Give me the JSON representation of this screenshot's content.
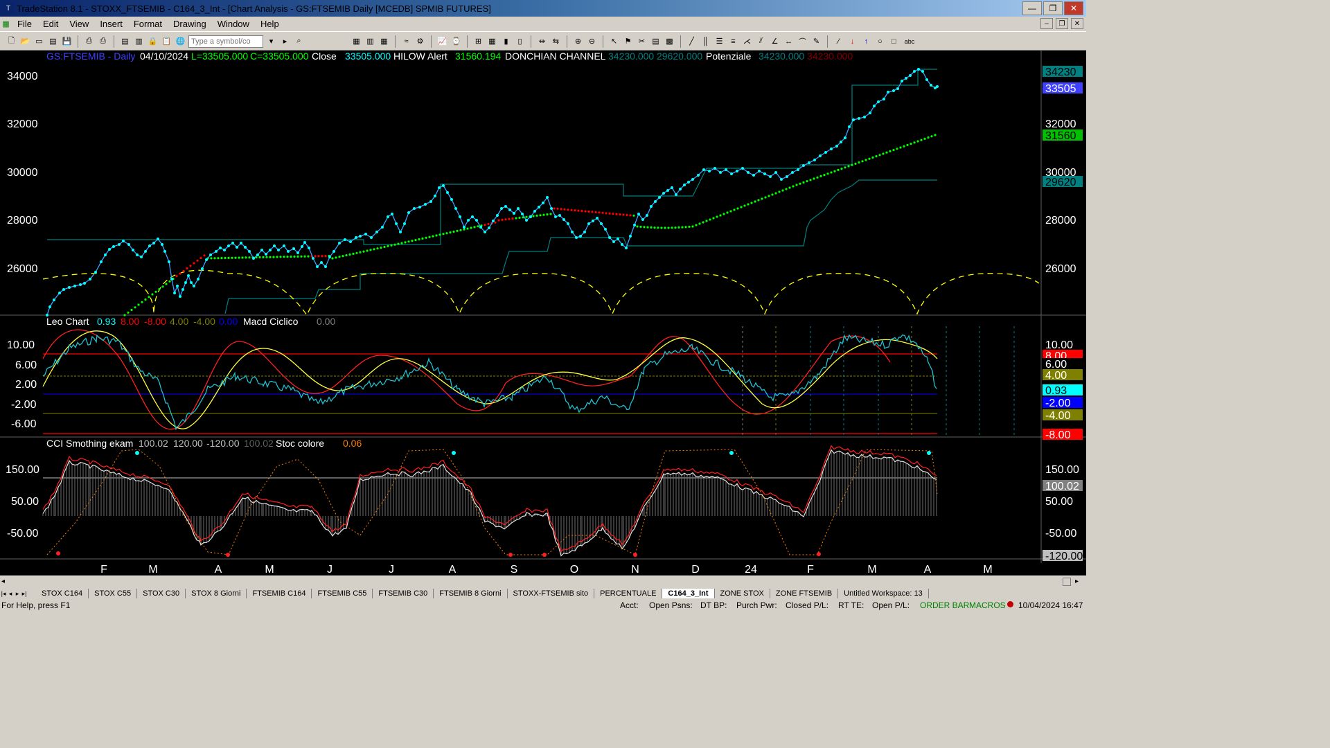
{
  "window": {
    "title": "TradeStation 8.1 - STOXX_FTSEMIB - C164_3_Int - [Chart Analysis - GS:FTSEMIB  Daily  [MCEDB] SPMIB FUTURES]",
    "minimize": "—",
    "maximize": "❐",
    "close": "✕"
  },
  "menu": [
    "File",
    "Edit",
    "View",
    "Insert",
    "Format",
    "Drawing",
    "Window",
    "Help"
  ],
  "toolbar": {
    "symbol_placeholder": "Type a symbol/co",
    "text_tool": "abc"
  },
  "chart": {
    "header": {
      "symbol": "GS:FTSEMIB - Daily",
      "date": "04/10/2024",
      "low": "L=33505.000",
      "close_val": "C=33505.000",
      "close_label": "Close",
      "close_num": "33505.000",
      "hilow_label": "HILOW Alert",
      "hilow_val": "31560.194",
      "donchian_label": "DONCHIAN CHANNEL",
      "donchian_hi": "34230.000",
      "donchian_lo": "29620.000",
      "potenziale_label": "Potenziale",
      "pot_1": "34230.000",
      "pot_2": "34230.000"
    },
    "price_axis": [
      "34000",
      "32000",
      "30000",
      "28000",
      "26000"
    ],
    "price_badges": [
      {
        "text": "34230",
        "bg": "#008080",
        "fg": "#000000"
      },
      {
        "text": "33505",
        "bg": "#4040ff",
        "fg": "#ffffff"
      },
      {
        "text": "31560",
        "bg": "#00c000",
        "fg": "#000000"
      },
      {
        "text": "29620",
        "bg": "#008080",
        "fg": "#000000"
      }
    ],
    "leo": {
      "label": "Leo Chart",
      "v1": "0.93",
      "v2": "8.00",
      "v3": "-8.00",
      "v4": "4.00",
      "v5": "-4.00",
      "v6": "0.00",
      "macd_label": "Macd Ciclico",
      "macd_val": "0.00",
      "axis": [
        "10.00",
        "6.00",
        "2.00",
        "-2.00",
        "-6.00"
      ],
      "badges": [
        {
          "text": "10.00",
          "bg": "#000000",
          "fg": "#ffffff"
        },
        {
          "text": "8.00",
          "bg": "#ff0000",
          "fg": "#ffffff"
        },
        {
          "text": "6.00",
          "bg": "#000000",
          "fg": "#ffffff"
        },
        {
          "text": "4.00",
          "bg": "#808000",
          "fg": "#ffffff"
        },
        {
          "text": "0.93",
          "bg": "#00ffff",
          "fg": "#000000"
        },
        {
          "text": "-2.00",
          "bg": "#0000ff",
          "fg": "#ffffff"
        },
        {
          "text": "-4.00",
          "bg": "#808000",
          "fg": "#ffffff"
        },
        {
          "text": "-8.00",
          "bg": "#ff0000",
          "fg": "#ffffff"
        }
      ]
    },
    "cci": {
      "label": "CCI Smothing ekam",
      "v1": "100.02",
      "v2": "120.00",
      "v3": "-120.00",
      "v4": "100.02",
      "stoc_label": "Stoc colore",
      "stoc_val": "0.06",
      "axis": [
        "150.00",
        "50.00",
        "-50.00"
      ],
      "badges": [
        {
          "text": "150.00",
          "bg": "#000000",
          "fg": "#ffffff"
        },
        {
          "text": "100.02",
          "bg": "#808080",
          "fg": "#ffffff"
        },
        {
          "text": "50.00",
          "bg": "#000000",
          "fg": "#ffffff"
        },
        {
          "text": "-50.00",
          "bg": "#000000",
          "fg": "#ffffff"
        },
        {
          "text": "-120.00",
          "bg": "#c0c0c0",
          "fg": "#000000"
        }
      ]
    },
    "time_axis": [
      "F",
      "M",
      "A",
      "M",
      "J",
      "J",
      "A",
      "S",
      "O",
      "N",
      "D",
      "24",
      "F",
      "M",
      "A",
      "M"
    ]
  },
  "tabs": [
    "STOX C164",
    "STOX C55",
    "STOX  C30",
    "STOX  8 Giorni",
    "FTSEMIB C164",
    "FTSEMIB C55",
    "FTSEMIB C30",
    "FTSEMIB  8 Giorni",
    "STOXX-FTSEMIB sito",
    "PERCENTUALE",
    "C164_3_Int",
    "ZONE STOX",
    "ZONE FTSEMIB",
    "Untitled Workspace:  13"
  ],
  "active_tab": "C164_3_Int",
  "status": {
    "help": "For Help, press F1",
    "acct": "Acct:",
    "open_psns": "Open Psns:",
    "dt_bp": "DT BP:",
    "purch_pwr": "Purch Pwr:",
    "closed_pl": "Closed P/L:",
    "rt_te": "RT TE:",
    "open_pl": "Open P/L:",
    "order_bar": "ORDER BAR",
    "macros": "MACROS",
    "datetime": "10/04/2024 16:47"
  },
  "colors": {
    "price": "#00ffff",
    "hilow_up": "#00ff00",
    "hilow_down": "#ff0000",
    "donchian": "#008080",
    "cycle": "#ffff00",
    "leo_red": "#ff0000",
    "leo_yellow": "#ffff00",
    "leo_cyan": "#00ffff",
    "cci_white": "#ffffff",
    "stoc": "#ff8000"
  }
}
